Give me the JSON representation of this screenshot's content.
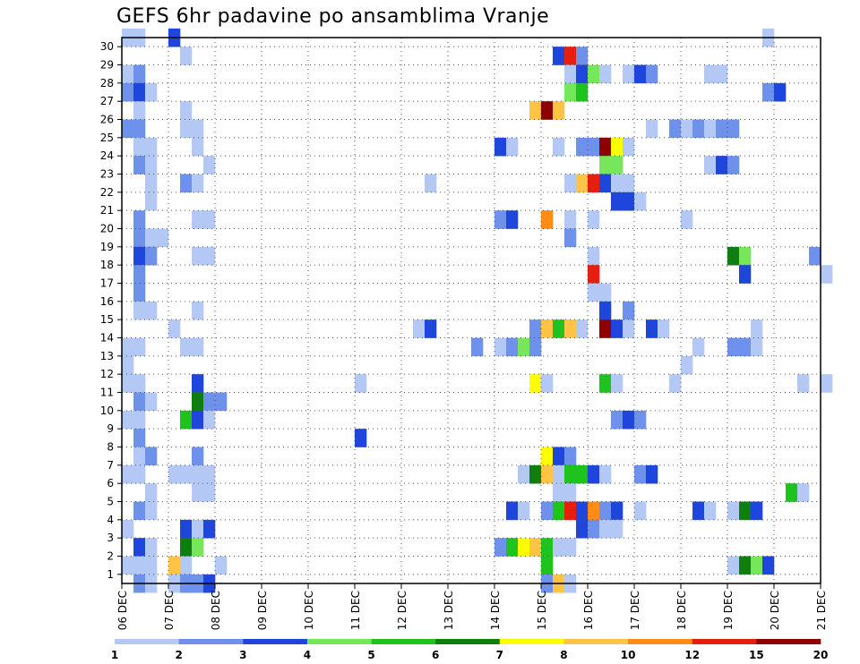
{
  "chart_data": {
    "type": "heatmap",
    "title": "GEFS 6hr padavine po ansamblima Vranje",
    "xlabel": "",
    "ylabel": "",
    "x_ticks": [
      "06 DEC",
      "07 DEC",
      "08 DEC",
      "09 DEC",
      "10 DEC",
      "11 DEC",
      "12 DEC",
      "13 DEC",
      "14 DEC",
      "15 DEC",
      "16 DEC",
      "17 DEC",
      "18 DEC",
      "19 DEC",
      "20 DEC",
      "21 DEC"
    ],
    "y_ticks": [
      "1",
      "2",
      "3",
      "4",
      "5",
      "6",
      "7",
      "8",
      "9",
      "10",
      "11",
      "12",
      "13",
      "14",
      "15",
      "16",
      "17",
      "18",
      "19",
      "20",
      "21",
      "22",
      "23",
      "24",
      "25",
      "26",
      "27",
      "28",
      "29",
      "30"
    ],
    "x_range": [
      0,
      60
    ],
    "y_range": [
      0,
      30
    ],
    "x_unit": "6-hour steps from 06 DEC 00Z",
    "grid": true,
    "colorbar": {
      "labels": [
        "1",
        "2",
        "3",
        "4",
        "5",
        "6",
        "7",
        "8",
        "10",
        "12",
        "15",
        "20"
      ],
      "colors": [
        "#b4c8f5",
        "#6e91eb",
        "#1e46dc",
        "#78e65a",
        "#1ec31e",
        "#0f7d0f",
        "#ffff00",
        "#ffc346",
        "#ff8c14",
        "#e61e0f",
        "#8c0000"
      ]
    },
    "cells": [
      [
        0,
        30,
        1
      ],
      [
        1,
        30,
        1
      ],
      [
        4,
        30,
        3
      ],
      [
        55,
        30,
        1
      ],
      [
        5,
        29,
        1
      ],
      [
        37,
        29,
        3
      ],
      [
        38,
        29,
        10
      ],
      [
        39,
        29,
        2
      ],
      [
        0,
        28,
        1
      ],
      [
        1,
        28,
        2
      ],
      [
        38,
        28,
        1
      ],
      [
        39,
        28,
        3
      ],
      [
        40,
        28,
        4
      ],
      [
        41,
        28,
        1
      ],
      [
        43,
        28,
        1
      ],
      [
        44,
        28,
        3
      ],
      [
        45,
        28,
        2
      ],
      [
        50,
        28,
        1
      ],
      [
        51,
        28,
        1
      ],
      [
        0,
        27,
        2
      ],
      [
        1,
        27,
        3
      ],
      [
        2,
        27,
        1
      ],
      [
        38,
        27,
        4
      ],
      [
        39,
        27,
        5
      ],
      [
        55,
        27,
        2
      ],
      [
        56,
        27,
        3
      ],
      [
        1,
        26,
        1
      ],
      [
        5,
        26,
        1
      ],
      [
        35,
        26,
        8
      ],
      [
        36,
        26,
        11
      ],
      [
        37,
        26,
        8
      ],
      [
        0,
        25,
        2
      ],
      [
        1,
        25,
        2
      ],
      [
        5,
        25,
        1
      ],
      [
        6,
        25,
        1
      ],
      [
        45,
        25,
        1
      ],
      [
        47,
        25,
        2
      ],
      [
        48,
        25,
        1
      ],
      [
        49,
        25,
        2
      ],
      [
        50,
        25,
        1
      ],
      [
        51,
        25,
        2
      ],
      [
        52,
        25,
        2
      ],
      [
        1,
        24,
        1
      ],
      [
        2,
        24,
        1
      ],
      [
        6,
        24,
        1
      ],
      [
        32,
        24,
        3
      ],
      [
        33,
        24,
        1
      ],
      [
        37,
        24,
        1
      ],
      [
        39,
        24,
        2
      ],
      [
        40,
        24,
        2
      ],
      [
        41,
        24,
        11
      ],
      [
        42,
        24,
        7
      ],
      [
        43,
        24,
        1
      ],
      [
        1,
        23,
        2
      ],
      [
        2,
        23,
        1
      ],
      [
        7,
        23,
        1
      ],
      [
        41,
        23,
        4
      ],
      [
        42,
        23,
        4
      ],
      [
        50,
        23,
        1
      ],
      [
        51,
        23,
        3
      ],
      [
        52,
        23,
        2
      ],
      [
        2,
        22,
        1
      ],
      [
        5,
        22,
        2
      ],
      [
        6,
        22,
        1
      ],
      [
        26,
        22,
        1
      ],
      [
        38,
        22,
        1
      ],
      [
        39,
        22,
        8
      ],
      [
        40,
        22,
        10
      ],
      [
        41,
        22,
        3
      ],
      [
        42,
        22,
        1
      ],
      [
        43,
        22,
        1
      ],
      [
        2,
        21,
        1
      ],
      [
        42,
        21,
        3
      ],
      [
        43,
        21,
        3
      ],
      [
        44,
        21,
        1
      ],
      [
        1,
        20,
        2
      ],
      [
        6,
        20,
        1
      ],
      [
        7,
        20,
        1
      ],
      [
        32,
        20,
        2
      ],
      [
        33,
        20,
        3
      ],
      [
        36,
        20,
        9
      ],
      [
        38,
        20,
        1
      ],
      [
        40,
        20,
        1
      ],
      [
        48,
        20,
        1
      ],
      [
        1,
        19,
        2
      ],
      [
        2,
        19,
        1
      ],
      [
        3,
        19,
        1
      ],
      [
        38,
        19,
        2
      ],
      [
        1,
        18,
        3
      ],
      [
        2,
        18,
        2
      ],
      [
        6,
        18,
        1
      ],
      [
        7,
        18,
        1
      ],
      [
        40,
        18,
        1
      ],
      [
        52,
        18,
        6
      ],
      [
        53,
        18,
        4
      ],
      [
        59,
        18,
        2
      ],
      [
        1,
        17,
        2
      ],
      [
        40,
        17,
        10
      ],
      [
        53,
        17,
        3
      ],
      [
        60,
        17,
        1
      ],
      [
        1,
        16,
        2
      ],
      [
        40,
        16,
        1
      ],
      [
        41,
        16,
        1
      ],
      [
        1,
        15,
        1
      ],
      [
        2,
        15,
        1
      ],
      [
        6,
        15,
        1
      ],
      [
        41,
        15,
        3
      ],
      [
        43,
        15,
        2
      ],
      [
        4,
        14,
        1
      ],
      [
        25,
        14,
        1
      ],
      [
        26,
        14,
        3
      ],
      [
        35,
        14,
        2
      ],
      [
        36,
        14,
        8
      ],
      [
        37,
        14,
        5
      ],
      [
        38,
        14,
        8
      ],
      [
        39,
        14,
        1
      ],
      [
        41,
        14,
        11
      ],
      [
        42,
        14,
        3
      ],
      [
        43,
        14,
        1
      ],
      [
        45,
        14,
        3
      ],
      [
        46,
        14,
        1
      ],
      [
        54,
        14,
        1
      ],
      [
        0,
        13,
        1
      ],
      [
        1,
        13,
        1
      ],
      [
        5,
        13,
        1
      ],
      [
        6,
        13,
        1
      ],
      [
        30,
        13,
        2
      ],
      [
        32,
        13,
        1
      ],
      [
        33,
        13,
        2
      ],
      [
        34,
        13,
        4
      ],
      [
        35,
        13,
        2
      ],
      [
        49,
        13,
        1
      ],
      [
        52,
        13,
        2
      ],
      [
        53,
        13,
        2
      ],
      [
        54,
        13,
        1
      ],
      [
        0,
        12,
        1
      ],
      [
        48,
        12,
        1
      ],
      [
        0,
        11,
        1
      ],
      [
        1,
        11,
        1
      ],
      [
        6,
        11,
        3
      ],
      [
        20,
        11,
        1
      ],
      [
        35,
        11,
        7
      ],
      [
        36,
        11,
        1
      ],
      [
        41,
        11,
        5
      ],
      [
        42,
        11,
        1
      ],
      [
        47,
        11,
        1
      ],
      [
        58,
        11,
        1
      ],
      [
        60,
        11,
        1
      ],
      [
        1,
        10,
        2
      ],
      [
        2,
        10,
        1
      ],
      [
        6,
        10,
        6
      ],
      [
        7,
        10,
        2
      ],
      [
        8,
        10,
        2
      ],
      [
        0,
        9,
        1
      ],
      [
        1,
        9,
        1
      ],
      [
        5,
        9,
        5
      ],
      [
        6,
        9,
        3
      ],
      [
        7,
        9,
        1
      ],
      [
        42,
        9,
        2
      ],
      [
        43,
        9,
        3
      ],
      [
        44,
        9,
        2
      ],
      [
        1,
        8,
        2
      ],
      [
        20,
        8,
        3
      ],
      [
        1,
        7,
        1
      ],
      [
        2,
        7,
        2
      ],
      [
        6,
        7,
        2
      ],
      [
        36,
        7,
        7
      ],
      [
        37,
        7,
        3
      ],
      [
        38,
        7,
        2
      ],
      [
        0,
        6,
        1
      ],
      [
        1,
        6,
        1
      ],
      [
        4,
        6,
        1
      ],
      [
        5,
        6,
        1
      ],
      [
        6,
        6,
        1
      ],
      [
        7,
        6,
        1
      ],
      [
        34,
        6,
        1
      ],
      [
        35,
        6,
        6
      ],
      [
        36,
        6,
        8
      ],
      [
        37,
        6,
        1
      ],
      [
        38,
        6,
        5
      ],
      [
        39,
        6,
        5
      ],
      [
        40,
        6,
        3
      ],
      [
        41,
        6,
        1
      ],
      [
        44,
        6,
        2
      ],
      [
        45,
        6,
        3
      ],
      [
        2,
        5,
        1
      ],
      [
        6,
        5,
        1
      ],
      [
        7,
        5,
        1
      ],
      [
        37,
        5,
        1
      ],
      [
        38,
        5,
        1
      ],
      [
        57,
        5,
        5
      ],
      [
        58,
        5,
        1
      ],
      [
        1,
        4,
        2
      ],
      [
        2,
        4,
        1
      ],
      [
        33,
        4,
        3
      ],
      [
        34,
        4,
        1
      ],
      [
        36,
        4,
        2
      ],
      [
        37,
        4,
        5
      ],
      [
        38,
        4,
        10
      ],
      [
        39,
        4,
        3
      ],
      [
        40,
        4,
        9
      ],
      [
        41,
        4,
        2
      ],
      [
        42,
        4,
        3
      ],
      [
        44,
        4,
        1
      ],
      [
        49,
        4,
        3
      ],
      [
        50,
        4,
        1
      ],
      [
        52,
        4,
        1
      ],
      [
        53,
        4,
        6
      ],
      [
        54,
        4,
        3
      ],
      [
        0,
        3,
        1
      ],
      [
        5,
        3,
        3
      ],
      [
        6,
        3,
        1
      ],
      [
        7,
        3,
        3
      ],
      [
        39,
        3,
        3
      ],
      [
        40,
        3,
        2
      ],
      [
        41,
        3,
        1
      ],
      [
        42,
        3,
        1
      ],
      [
        1,
        2,
        3
      ],
      [
        2,
        2,
        1
      ],
      [
        5,
        2,
        6
      ],
      [
        6,
        2,
        4
      ],
      [
        32,
        2,
        2
      ],
      [
        33,
        2,
        5
      ],
      [
        34,
        2,
        7
      ],
      [
        35,
        2,
        8
      ],
      [
        36,
        2,
        5
      ],
      [
        37,
        2,
        1
      ],
      [
        38,
        2,
        1
      ],
      [
        0,
        1,
        1
      ],
      [
        1,
        1,
        1
      ],
      [
        2,
        1,
        1
      ],
      [
        4,
        1,
        8
      ],
      [
        5,
        1,
        1
      ],
      [
        8,
        1,
        1
      ],
      [
        36,
        1,
        5
      ],
      [
        52,
        1,
        1
      ],
      [
        53,
        1,
        6
      ],
      [
        54,
        1,
        4
      ],
      [
        55,
        1,
        3
      ],
      [
        1,
        0,
        2
      ],
      [
        2,
        0,
        1
      ],
      [
        4,
        0,
        1
      ],
      [
        5,
        0,
        2
      ],
      [
        6,
        0,
        2
      ],
      [
        7,
        0,
        3
      ],
      [
        36,
        0,
        2
      ],
      [
        37,
        0,
        8
      ],
      [
        38,
        0,
        1
      ]
    ]
  }
}
